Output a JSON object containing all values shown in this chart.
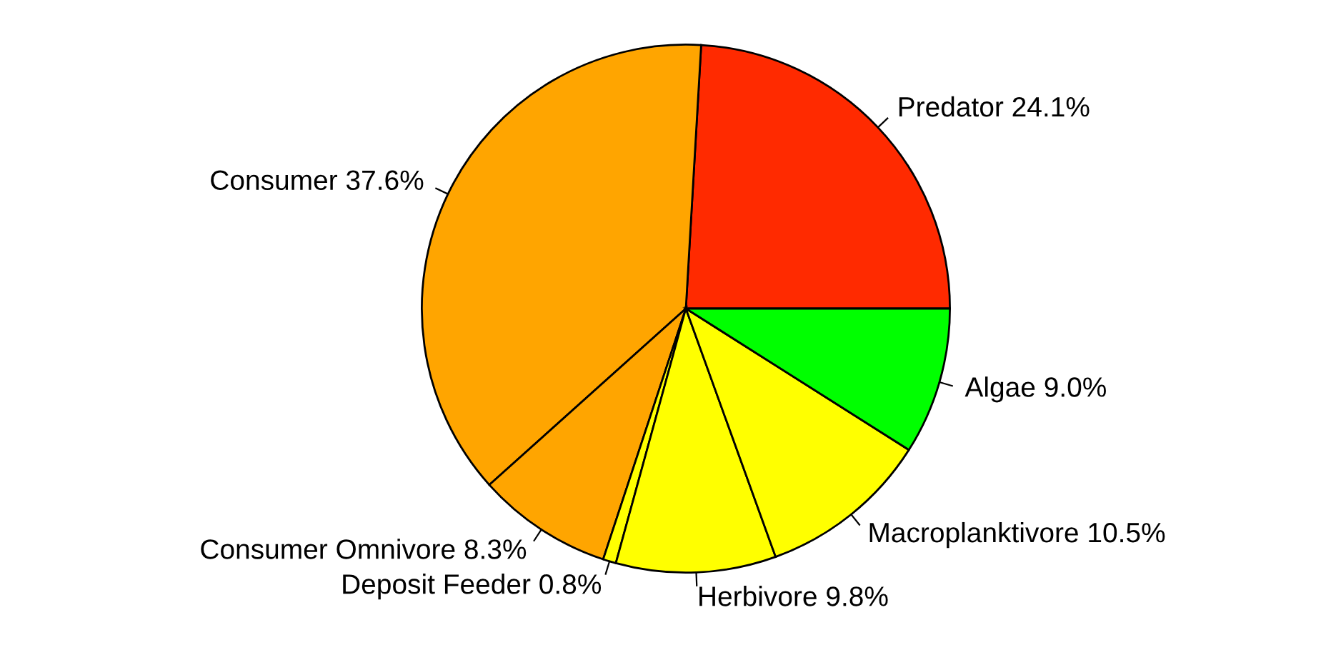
{
  "chart_data": {
    "type": "pie",
    "categories": [
      "Predator",
      "Consumer",
      "Consumer Omnivore",
      "Deposit Feeder",
      "Herbivore",
      "Macroplanktivore",
      "Algae"
    ],
    "values": [
      24.1,
      37.6,
      8.3,
      0.8,
      9.8,
      10.5,
      9.0
    ],
    "value_labels": [
      "24.1%",
      "37.6%",
      "8.3%",
      "0.8%",
      "9.8%",
      "10.5%",
      "9.0%"
    ],
    "colors": [
      "#ff2a00",
      "#ffa500",
      "#ffa500",
      "#ffff00",
      "#ffff00",
      "#ffff00",
      "#00ff00"
    ]
  }
}
